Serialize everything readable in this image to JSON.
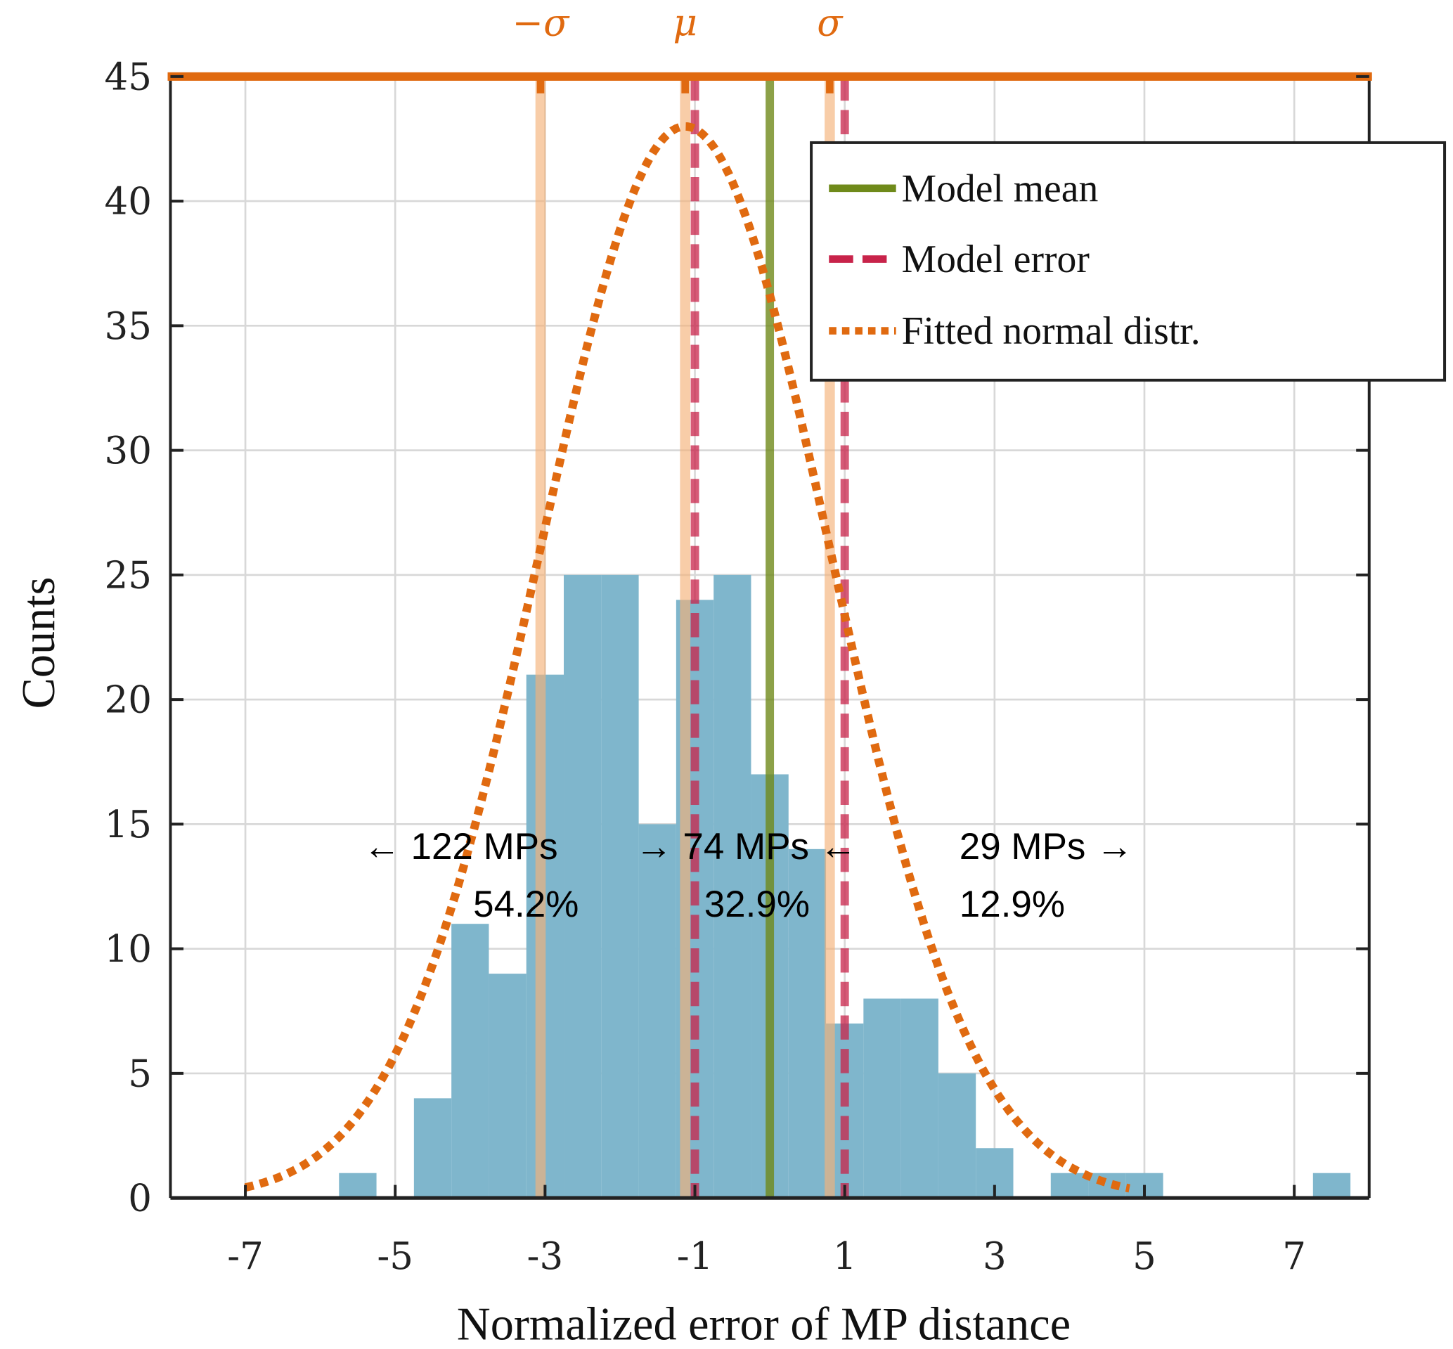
{
  "chart_data": {
    "type": "bar",
    "title": "",
    "xlabel": "Normalized error of MP distance",
    "ylabel": "Counts",
    "xlim": [
      -8,
      8
    ],
    "ylim": [
      0,
      45
    ],
    "xticks": [
      "-7",
      "-5",
      "-3",
      "-1",
      "1",
      "3",
      "5",
      "7"
    ],
    "xtick_values": [
      -7,
      -5,
      -3,
      -1,
      1,
      3,
      5,
      7
    ],
    "yticks": [
      "0",
      "5",
      "10",
      "15",
      "20",
      "25",
      "30",
      "35",
      "40",
      "45"
    ],
    "ytick_values": [
      0,
      5,
      10,
      15,
      20,
      25,
      30,
      35,
      40,
      45
    ],
    "grid": true,
    "histogram": {
      "bin_width": 0.5,
      "bin_left_edges": [
        -5.75,
        -4.75,
        -4.25,
        -3.75,
        -3.25,
        -2.75,
        -2.25,
        -1.75,
        -1.25,
        -0.75,
        -0.25,
        0.25,
        0.75,
        1.25,
        1.75,
        2.25,
        2.75,
        3.75,
        4.25,
        4.75,
        7.25
      ],
      "counts": [
        1,
        4,
        11,
        9,
        21,
        25,
        25,
        15,
        24,
        25,
        17,
        14,
        7,
        8,
        8,
        5,
        2,
        1,
        1,
        1,
        1
      ],
      "color": "#7fb6cc"
    },
    "fitted_normal": {
      "mu": -1.13,
      "sigma": 1.93,
      "peak": 43,
      "x_range": [
        -7,
        4.8
      ],
      "color": "#e06a10"
    },
    "model_mean": {
      "x": 0.0,
      "color": "#6f8a1a"
    },
    "model_error": {
      "x": [
        -1.0,
        1.0
      ],
      "color": "#c8234a"
    },
    "sigma_markers": [
      {
        "label": "−σ",
        "x": -3.06
      },
      {
        "label": "μ",
        "x": -1.13
      },
      {
        "label": "σ",
        "x": 0.8
      }
    ],
    "legend": {
      "placement": "top-right",
      "entries": [
        "Model mean",
        "Model error",
        "Fitted normal distr."
      ]
    },
    "annotations": [
      {
        "count": "← 122 MPs",
        "pct": "54.2%"
      },
      {
        "count": "→ 74 MPs ←",
        "pct": "32.9%"
      },
      {
        "count": "29 MPs →",
        "pct": "12.9%"
      }
    ]
  }
}
